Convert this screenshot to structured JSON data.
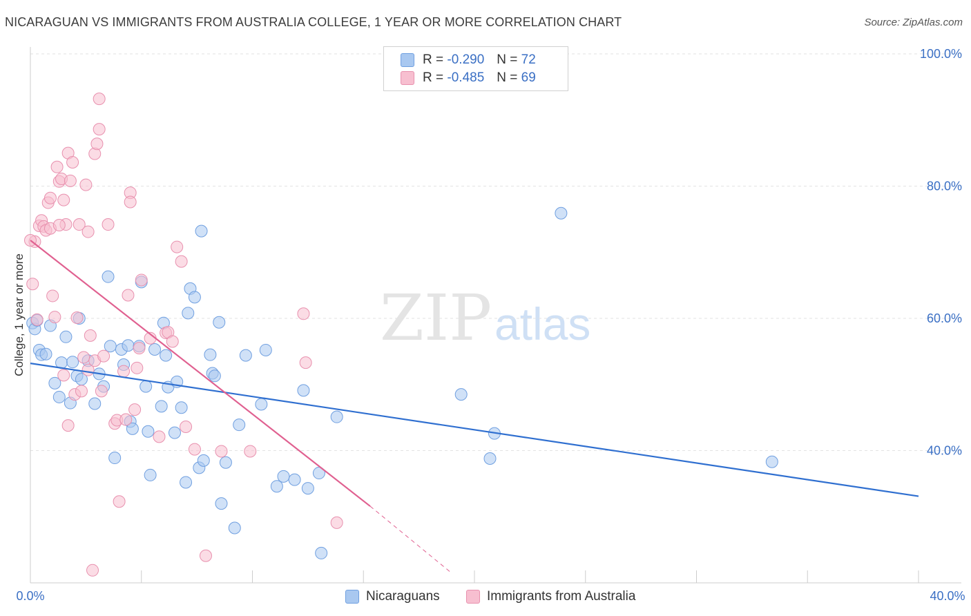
{
  "title": "NICARAGUAN VS IMMIGRANTS FROM AUSTRALIA COLLEGE, 1 YEAR OR MORE CORRELATION CHART",
  "source": "Source: ZipAtlas.com",
  "watermark": {
    "zip": "ZIP",
    "atlas": "atlas"
  },
  "legend": {
    "r_label": "R =",
    "n_label": "N =",
    "rows": [
      {
        "r": "-0.290",
        "n": "72",
        "color": "#a9c8f0",
        "border": "#6f9fe0"
      },
      {
        "r": "-0.485",
        "n": "69",
        "color": "#f7bfd0",
        "border": "#e890ae"
      }
    ]
  },
  "bottom_legend": [
    "Nicaraguans",
    "Immigrants from Australia"
  ],
  "chart_data": {
    "type": "scatter",
    "title": "NICARAGUAN VS IMMIGRANTS FROM AUSTRALIA COLLEGE, 1 YEAR OR MORE CORRELATION CHART",
    "xlabel": "",
    "ylabel": "College, 1 year or more",
    "xlim": [
      0,
      40
    ],
    "ylim": [
      20,
      100
    ],
    "x_tick_labels": [
      "0.0%",
      "40.0%"
    ],
    "y_ticks": [
      40,
      60,
      80,
      100
    ],
    "y_tick_labels": [
      "40.0%",
      "60.0%",
      "80.0%",
      "100.0%"
    ],
    "grid": true,
    "series": [
      {
        "name": "Nicaraguans",
        "color": "#a9c8f0",
        "stroke": "#6f9fe0",
        "line_color": "#2f6fd0",
        "trend": {
          "x": [
            0,
            40
          ],
          "y": [
            53.2,
            33.1
          ]
        },
        "points": [
          [
            0.1,
            59.3
          ],
          [
            0.2,
            58.4
          ],
          [
            0.4,
            55.2
          ],
          [
            0.5,
            54.5
          ],
          [
            0.7,
            54.6
          ],
          [
            0.9,
            58.9
          ],
          [
            1.1,
            50.2
          ],
          [
            1.3,
            48.1
          ],
          [
            1.4,
            53.3
          ],
          [
            1.6,
            57.2
          ],
          [
            1.8,
            47.2
          ],
          [
            1.9,
            53.4
          ],
          [
            2.1,
            51.3
          ],
          [
            2.3,
            50.8
          ],
          [
            2.2,
            60.0
          ],
          [
            2.6,
            53.6
          ],
          [
            2.9,
            47.1
          ],
          [
            3.1,
            51.6
          ],
          [
            3.3,
            49.7
          ],
          [
            3.5,
            66.3
          ],
          [
            3.6,
            55.8
          ],
          [
            3.8,
            38.9
          ],
          [
            4.1,
            55.3
          ],
          [
            4.2,
            53.0
          ],
          [
            4.4,
            55.9
          ],
          [
            4.5,
            44.4
          ],
          [
            4.6,
            43.3
          ],
          [
            4.9,
            55.8
          ],
          [
            5.0,
            65.5
          ],
          [
            5.2,
            49.7
          ],
          [
            5.3,
            42.9
          ],
          [
            5.4,
            36.3
          ],
          [
            5.6,
            55.3
          ],
          [
            5.9,
            46.7
          ],
          [
            6.0,
            59.3
          ],
          [
            6.1,
            54.4
          ],
          [
            6.2,
            49.6
          ],
          [
            6.5,
            42.7
          ],
          [
            6.6,
            50.4
          ],
          [
            6.8,
            46.5
          ],
          [
            7.0,
            35.2
          ],
          [
            7.1,
            60.8
          ],
          [
            7.2,
            64.5
          ],
          [
            7.4,
            63.2
          ],
          [
            7.6,
            37.4
          ],
          [
            7.7,
            73.2
          ],
          [
            7.8,
            38.5
          ],
          [
            8.1,
            54.5
          ],
          [
            8.2,
            51.7
          ],
          [
            8.3,
            51.3
          ],
          [
            8.5,
            59.4
          ],
          [
            8.6,
            32.0
          ],
          [
            8.8,
            38.2
          ],
          [
            9.2,
            28.3
          ],
          [
            9.4,
            43.9
          ],
          [
            9.7,
            54.4
          ],
          [
            10.4,
            47.0
          ],
          [
            10.6,
            55.2
          ],
          [
            11.1,
            34.6
          ],
          [
            11.4,
            36.1
          ],
          [
            11.9,
            35.6
          ],
          [
            12.3,
            49.1
          ],
          [
            12.5,
            34.3
          ],
          [
            13.0,
            36.6
          ],
          [
            13.1,
            24.5
          ],
          [
            13.8,
            45.1
          ],
          [
            19.4,
            48.5
          ],
          [
            20.9,
            42.6
          ],
          [
            20.7,
            38.8
          ],
          [
            23.9,
            75.9
          ],
          [
            33.4,
            38.3
          ],
          [
            0.3,
            59.7
          ]
        ]
      },
      {
        "name": "Immigrants from Australia",
        "color": "#f7bfd0",
        "stroke": "#e890ae",
        "line_color": "#e06090",
        "trend": {
          "x": [
            0,
            15.3
          ],
          "y": [
            71.8,
            31.6
          ]
        },
        "trend_dashed": {
          "x": [
            15.3,
            19.0
          ],
          "y": [
            31.6,
            21.4
          ]
        },
        "points": [
          [
            0.1,
            65.2
          ],
          [
            0.2,
            71.6
          ],
          [
            0.3,
            59.8
          ],
          [
            0.4,
            74.0
          ],
          [
            0.5,
            74.8
          ],
          [
            0.6,
            73.9
          ],
          [
            0.7,
            73.3
          ],
          [
            0.8,
            77.5
          ],
          [
            0.9,
            78.2
          ],
          [
            0.9,
            73.6
          ],
          [
            1.0,
            63.4
          ],
          [
            1.1,
            60.2
          ],
          [
            1.2,
            82.9
          ],
          [
            1.3,
            80.7
          ],
          [
            1.4,
            81.1
          ],
          [
            1.5,
            77.9
          ],
          [
            1.5,
            51.4
          ],
          [
            1.6,
            74.2
          ],
          [
            1.7,
            43.8
          ],
          [
            1.7,
            85.0
          ],
          [
            1.8,
            80.8
          ],
          [
            1.9,
            83.6
          ],
          [
            2.0,
            48.5
          ],
          [
            2.1,
            60.1
          ],
          [
            2.2,
            74.2
          ],
          [
            2.3,
            49.0
          ],
          [
            2.4,
            54.1
          ],
          [
            2.5,
            80.2
          ],
          [
            2.6,
            73.1
          ],
          [
            2.6,
            52.2
          ],
          [
            2.7,
            57.4
          ],
          [
            2.8,
            21.9
          ],
          [
            2.9,
            53.6
          ],
          [
            2.9,
            84.9
          ],
          [
            3.0,
            86.4
          ],
          [
            3.1,
            93.2
          ],
          [
            3.1,
            88.6
          ],
          [
            3.3,
            54.3
          ],
          [
            3.5,
            74.2
          ],
          [
            3.8,
            44.1
          ],
          [
            3.9,
            44.6
          ],
          [
            4.0,
            32.3
          ],
          [
            4.2,
            52.0
          ],
          [
            4.3,
            44.7
          ],
          [
            4.4,
            63.5
          ],
          [
            4.5,
            79.0
          ],
          [
            4.5,
            77.6
          ],
          [
            4.7,
            46.2
          ],
          [
            4.8,
            52.5
          ],
          [
            4.9,
            55.5
          ],
          [
            5.0,
            65.8
          ],
          [
            5.4,
            57.0
          ],
          [
            5.8,
            42.1
          ],
          [
            6.1,
            57.8
          ],
          [
            6.2,
            57.9
          ],
          [
            6.4,
            56.5
          ],
          [
            6.6,
            70.8
          ],
          [
            6.8,
            68.6
          ],
          [
            7.0,
            43.6
          ],
          [
            7.4,
            40.2
          ],
          [
            7.9,
            24.1
          ],
          [
            8.6,
            39.9
          ],
          [
            9.9,
            39.9
          ],
          [
            12.3,
            60.7
          ],
          [
            12.4,
            53.3
          ],
          [
            13.8,
            29.1
          ],
          [
            0.0,
            71.8
          ],
          [
            3.2,
            49.0
          ],
          [
            1.3,
            74.1
          ]
        ]
      }
    ]
  }
}
